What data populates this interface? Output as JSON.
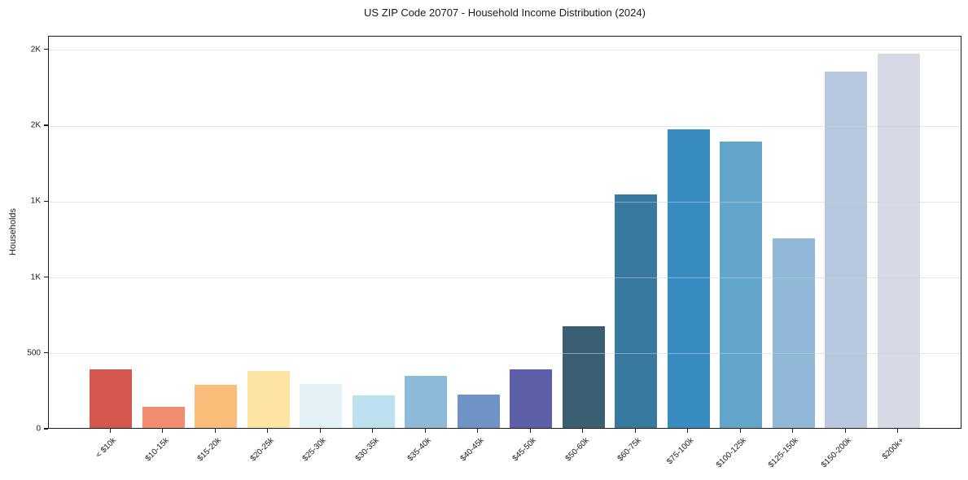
{
  "page": {
    "background": "#ffffff"
  },
  "chart_data": {
    "type": "bar",
    "title": "US ZIP Code 20707 - Household Income Distribution (2024)",
    "xlabel": "",
    "ylabel": "Households",
    "categories": [
      "< $10k",
      "$10-15k",
      "$15-20k",
      "$20-25k",
      "$25-30k",
      "$30-35k",
      "$35-40k",
      "$40-45k",
      "$45-50k",
      "$50-60k",
      "$60-75k",
      "$75-100k",
      "$100-125k",
      "$125-150k",
      "$150-200k",
      "$200k+"
    ],
    "values": [
      385,
      138,
      283,
      375,
      292,
      215,
      345,
      218,
      385,
      670,
      1540,
      1970,
      1890,
      1250,
      2350,
      2465
    ],
    "bar_colors": [
      "#d5584f",
      "#f28e6f",
      "#fbbd7a",
      "#fde4a2",
      "#e4f1f5",
      "#bce0ee",
      "#8cbad8",
      "#6e93c5",
      "#5c5fa8",
      "#3a5f73",
      "#38799f",
      "#388cc0",
      "#61a5cb",
      "#8fb9d7",
      "#b7c8de",
      "#d7d9e6"
    ],
    "ylim": [
      0,
      2590
    ],
    "yticks": [
      {
        "value": 0,
        "label": "0"
      },
      {
        "value": 500,
        "label": "500"
      },
      {
        "value": 1000,
        "label": "1K"
      },
      {
        "value": 1500,
        "label": "1K"
      },
      {
        "value": 2000,
        "label": "2K"
      },
      {
        "value": 2500,
        "label": "2K"
      }
    ],
    "grid": "horizontal-over-bars",
    "legend": "none"
  }
}
